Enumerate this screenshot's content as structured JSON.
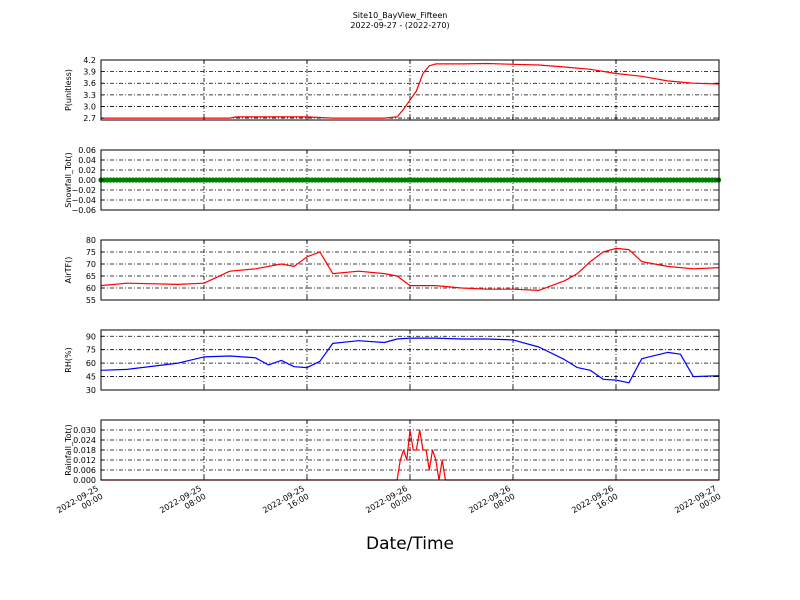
{
  "figure": {
    "title": "Site10_BayView_Fifteen",
    "subtitle": "2022-09-27 - (2022-270)",
    "xlabel": "Date/Time"
  },
  "chart_data": {
    "type": "line",
    "title": "Site10_BayView_Fifteen",
    "subtitle": "2022-09-27 - (2022-270)",
    "xlabel": "Date/Time",
    "grid": true,
    "x_range": [
      "2022-09-25 00:00",
      "2022-09-27 00:00"
    ],
    "x_ticks": [
      {
        "value": "2022-09-25 00:00",
        "line1": "2022-09-25",
        "line2": "00:00"
      },
      {
        "value": "2022-09-25 08:00",
        "line1": "2022-09-25",
        "line2": "08:00"
      },
      {
        "value": "2022-09-25 16:00",
        "line1": "2022-09-25",
        "line2": "16:00"
      },
      {
        "value": "2022-09-26 00:00",
        "line1": "2022-09-26",
        "line2": "00:00"
      },
      {
        "value": "2022-09-26 08:00",
        "line1": "2022-09-26",
        "line2": "08:00"
      },
      {
        "value": "2022-09-26 16:00",
        "line1": "2022-09-26",
        "line2": "16:00"
      },
      {
        "value": "2022-09-27 00:00",
        "line1": "2022-09-27",
        "line2": "00:00"
      }
    ],
    "panels": [
      {
        "ylabel": "P(unitless)",
        "color": "#ff0000",
        "marker": "none",
        "ylim": [
          2.65,
          4.2
        ],
        "y_ticks": [
          2.7,
          3.0,
          3.3,
          3.6,
          3.9,
          4.2
        ],
        "tick_labels": [
          "2.7",
          "3.0",
          "3.3",
          "3.6",
          "3.9",
          "4.2"
        ],
        "series": {
          "x": [
            "2022-09-25 00:00",
            "2022-09-25 10:00",
            "2022-09-25 10:30",
            "2022-09-25 16:00",
            "2022-09-25 18:00",
            "2022-09-25 22:00",
            "2022-09-25 23:00",
            "2022-09-25 23:30",
            "2022-09-26 00:30",
            "2022-09-26 01:00",
            "2022-09-26 01:30",
            "2022-09-26 02:00",
            "2022-09-26 04:00",
            "2022-09-26 06:00",
            "2022-09-26 08:00",
            "2022-09-26 10:00",
            "2022-09-26 12:00",
            "2022-09-26 14:00",
            "2022-09-26 16:00",
            "2022-09-26 18:00",
            "2022-09-26 20:00",
            "2022-09-26 22:00",
            "2022-09-27 00:00"
          ],
          "y": [
            2.7,
            2.7,
            2.73,
            2.73,
            2.7,
            2.7,
            2.73,
            2.93,
            3.4,
            3.85,
            4.05,
            4.1,
            4.1,
            4.11,
            4.09,
            4.07,
            4.02,
            3.96,
            3.85,
            3.78,
            3.66,
            3.6,
            3.58
          ]
        }
      },
      {
        "ylabel": "Snowfall_Tot()",
        "color": "#008000",
        "marker": "dots",
        "ylim": [
          -0.06,
          0.06
        ],
        "y_ticks": [
          -0.06,
          -0.04,
          -0.02,
          0.0,
          0.02,
          0.04,
          0.06
        ],
        "tick_labels": [
          "−0.06",
          "−0.04",
          "−0.02",
          "0.00",
          "0.02",
          "0.04",
          "0.06"
        ],
        "series": {
          "x": [
            "2022-09-25 00:00",
            "2022-09-27 00:00"
          ],
          "y": [
            0.0,
            0.0
          ]
        }
      },
      {
        "ylabel": "AirTF()",
        "color": "#ff0000",
        "marker": "none",
        "ylim": [
          55,
          80
        ],
        "y_ticks": [
          55,
          60,
          65,
          70,
          75,
          80
        ],
        "tick_labels": [
          "55",
          "60",
          "65",
          "70",
          "75",
          "80"
        ],
        "series": {
          "x": [
            "2022-09-25 00:00",
            "2022-09-25 02:00",
            "2022-09-25 06:00",
            "2022-09-25 08:00",
            "2022-09-25 10:00",
            "2022-09-25 12:00",
            "2022-09-25 14:00",
            "2022-09-25 15:00",
            "2022-09-25 16:00",
            "2022-09-25 17:00",
            "2022-09-25 18:00",
            "2022-09-25 20:00",
            "2022-09-25 22:00",
            "2022-09-25 23:00",
            "2022-09-26 00:00",
            "2022-09-26 02:00",
            "2022-09-26 04:00",
            "2022-09-26 06:00",
            "2022-09-26 08:00",
            "2022-09-26 10:00",
            "2022-09-26 12:00",
            "2022-09-26 13:00",
            "2022-09-26 14:00",
            "2022-09-26 15:00",
            "2022-09-26 16:00",
            "2022-09-26 17:00",
            "2022-09-26 18:00",
            "2022-09-26 20:00",
            "2022-09-26 22:00",
            "2022-09-27 00:00"
          ],
          "y": [
            61,
            62,
            61.5,
            62,
            67,
            68,
            70,
            69,
            73,
            75,
            66,
            67,
            66,
            65,
            61,
            61,
            60,
            59.5,
            59.5,
            59,
            63,
            66,
            71,
            75,
            76.5,
            76,
            71,
            69,
            68,
            68.5
          ]
        }
      },
      {
        "ylabel": "RH(%)",
        "color": "#0000ff",
        "marker": "none",
        "ylim": [
          30,
          97
        ],
        "y_ticks": [
          30,
          45,
          60,
          75,
          90
        ],
        "tick_labels": [
          "30",
          "45",
          "60",
          "75",
          "90"
        ],
        "series": {
          "x": [
            "2022-09-25 00:00",
            "2022-09-25 02:00",
            "2022-09-25 06:00",
            "2022-09-25 08:00",
            "2022-09-25 10:00",
            "2022-09-25 12:00",
            "2022-09-25 13:00",
            "2022-09-25 14:00",
            "2022-09-25 15:00",
            "2022-09-25 16:00",
            "2022-09-25 17:00",
            "2022-09-25 18:00",
            "2022-09-25 20:00",
            "2022-09-25 22:00",
            "2022-09-25 23:00",
            "2022-09-26 00:00",
            "2022-09-26 02:00",
            "2022-09-26 04:00",
            "2022-09-26 06:00",
            "2022-09-26 08:00",
            "2022-09-26 10:00",
            "2022-09-26 12:00",
            "2022-09-26 13:00",
            "2022-09-26 14:00",
            "2022-09-26 15:00",
            "2022-09-26 16:00",
            "2022-09-26 17:00",
            "2022-09-26 18:00",
            "2022-09-26 20:00",
            "2022-09-26 21:00",
            "2022-09-26 22:00",
            "2022-09-27 00:00"
          ],
          "y": [
            52,
            53,
            60,
            67,
            68,
            66,
            58,
            63,
            56,
            55,
            62,
            82,
            85,
            83,
            87,
            88,
            88,
            87,
            87,
            86,
            78,
            64,
            55,
            52,
            42,
            41,
            38,
            65,
            72,
            70,
            45,
            46
          ]
        }
      },
      {
        "ylabel": "Rainfall_Tot()",
        "color": "#ff0000",
        "marker": "none",
        "ylim": [
          0,
          0.036
        ],
        "y_ticks": [
          0.0,
          0.006,
          0.012,
          0.018,
          0.024,
          0.03
        ],
        "tick_labels": [
          "0.000",
          "0.006",
          "0.012",
          "0.018",
          "0.024",
          "0.030"
        ],
        "series": {
          "x": [
            "2022-09-25 00:00",
            "2022-09-25 23:00",
            "2022-09-25 23:15",
            "2022-09-25 23:30",
            "2022-09-25 23:45",
            "2022-09-26 00:00",
            "2022-09-26 00:15",
            "2022-09-26 00:30",
            "2022-09-26 00:45",
            "2022-09-26 01:00",
            "2022-09-26 01:15",
            "2022-09-26 01:30",
            "2022-09-26 01:45",
            "2022-09-26 02:00",
            "2022-09-26 02:15",
            "2022-09-26 02:30",
            "2022-09-26 02:45",
            "2022-09-26 03:00",
            "2022-09-27 00:00"
          ],
          "y": [
            0,
            0,
            0.012,
            0.018,
            0.012,
            0.03,
            0.018,
            0.018,
            0.03,
            0.018,
            0.018,
            0.006,
            0.018,
            0.012,
            0.0,
            0.012,
            0.0,
            0.0,
            0.0
          ]
        }
      }
    ]
  }
}
